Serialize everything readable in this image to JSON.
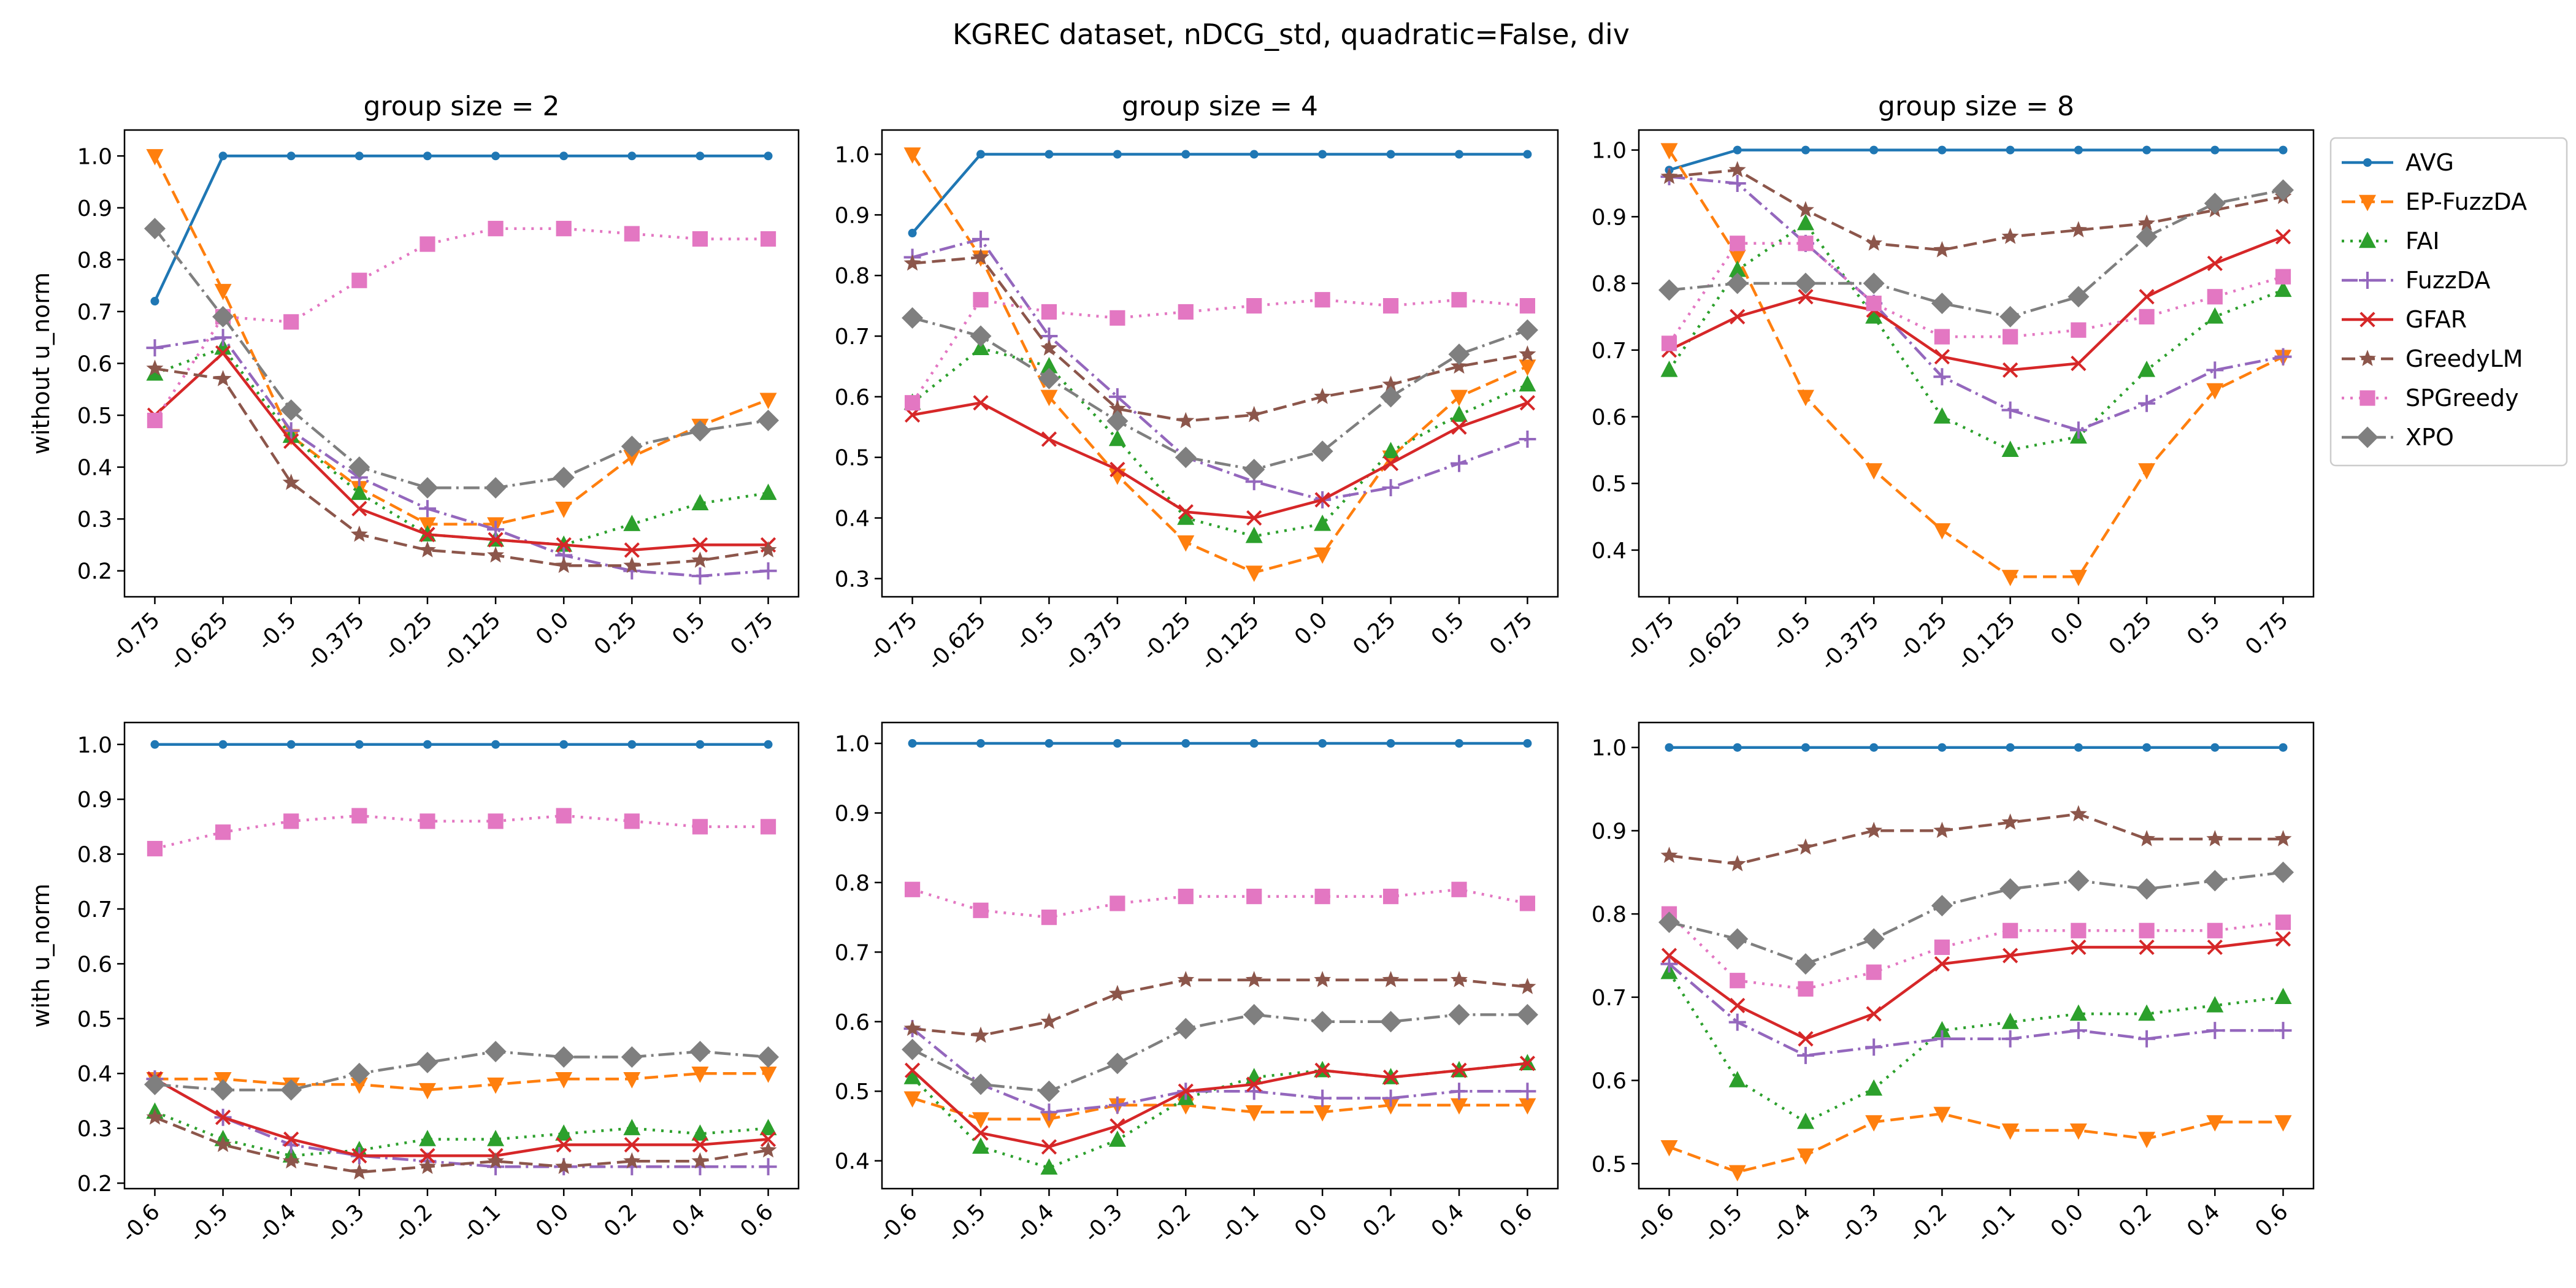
{
  "figure": {
    "suptitle": "KGREC dataset, nDCG_std, quadratic=False, div"
  },
  "series_styles": [
    {
      "name": "AVG",
      "color": "#1f77b4",
      "dash": "",
      "marker": "point"
    },
    {
      "name": "EP-FuzzDA",
      "color": "#ff7f0e",
      "dash": "22,10",
      "marker": "triangle-down"
    },
    {
      "name": "FAI",
      "color": "#2ca02c",
      "dash": "4,10",
      "marker": "triangle-up"
    },
    {
      "name": "FuzzDA",
      "color": "#9467bd",
      "dash": "26,8,4,8",
      "marker": "plus"
    },
    {
      "name": "GFAR",
      "color": "#d62728",
      "dash": "",
      "marker": "x"
    },
    {
      "name": "GreedyLM",
      "color": "#8c564b",
      "dash": "22,10",
      "marker": "star"
    },
    {
      "name": "SPGreedy",
      "color": "#e377c2",
      "dash": "4,10",
      "marker": "square"
    },
    {
      "name": "XPO",
      "color": "#7f7f7f",
      "dash": "26,8,4,8",
      "marker": "diamond"
    }
  ],
  "chart_data": [
    {
      "type": "line",
      "title": "group size = 2",
      "ylabel": "without u_norm",
      "xlabel": "",
      "categories": [
        "-0.75",
        "-0.625",
        "-0.5",
        "-0.375",
        "-0.25",
        "-0.125",
        "0.0",
        "0.25",
        "0.5",
        "0.75"
      ],
      "ylim": [
        0.15,
        1.05
      ],
      "yticks": [
        0.2,
        0.3,
        0.4,
        0.5,
        0.6,
        0.7,
        0.8,
        0.9,
        1.0
      ],
      "grid": false,
      "series": [
        {
          "name": "AVG",
          "values": [
            0.72,
            1.0,
            1.0,
            1.0,
            1.0,
            1.0,
            1.0,
            1.0,
            1.0,
            1.0
          ]
        },
        {
          "name": "EP-FuzzDA",
          "values": [
            1.0,
            0.74,
            0.46,
            0.36,
            0.29,
            0.29,
            0.32,
            0.42,
            0.48,
            0.53
          ]
        },
        {
          "name": "FAI",
          "values": [
            0.58,
            0.63,
            0.46,
            0.35,
            0.27,
            0.26,
            0.25,
            0.29,
            0.33,
            0.35
          ]
        },
        {
          "name": "FuzzDA",
          "values": [
            0.63,
            0.65,
            0.47,
            0.38,
            0.32,
            0.28,
            0.23,
            0.2,
            0.19,
            0.2
          ]
        },
        {
          "name": "GFAR",
          "values": [
            0.5,
            0.62,
            0.45,
            0.32,
            0.27,
            0.26,
            0.25,
            0.24,
            0.25,
            0.25
          ]
        },
        {
          "name": "GreedyLM",
          "values": [
            0.59,
            0.57,
            0.37,
            0.27,
            0.24,
            0.23,
            0.21,
            0.21,
            0.22,
            0.24
          ]
        },
        {
          "name": "SPGreedy",
          "values": [
            0.49,
            0.69,
            0.68,
            0.76,
            0.83,
            0.86,
            0.86,
            0.85,
            0.84,
            0.84
          ]
        },
        {
          "name": "XPO",
          "values": [
            0.86,
            0.69,
            0.51,
            0.4,
            0.36,
            0.36,
            0.38,
            0.44,
            0.47,
            0.49
          ]
        }
      ]
    },
    {
      "type": "line",
      "title": "group size = 4",
      "ylabel": "",
      "xlabel": "",
      "categories": [
        "-0.75",
        "-0.625",
        "-0.5",
        "-0.375",
        "-0.25",
        "-0.125",
        "0.0",
        "0.25",
        "0.5",
        "0.75"
      ],
      "ylim": [
        0.27,
        1.04
      ],
      "yticks": [
        0.3,
        0.4,
        0.5,
        0.6,
        0.7,
        0.8,
        0.9,
        1.0
      ],
      "grid": false,
      "series": [
        {
          "name": "AVG",
          "values": [
            0.87,
            1.0,
            1.0,
            1.0,
            1.0,
            1.0,
            1.0,
            1.0,
            1.0,
            1.0
          ]
        },
        {
          "name": "EP-FuzzDA",
          "values": [
            1.0,
            0.83,
            0.6,
            0.47,
            0.36,
            0.31,
            0.34,
            0.5,
            0.6,
            0.65
          ]
        },
        {
          "name": "FAI",
          "values": [
            0.59,
            0.68,
            0.65,
            0.53,
            0.4,
            0.37,
            0.39,
            0.51,
            0.57,
            0.62
          ]
        },
        {
          "name": "FuzzDA",
          "values": [
            0.83,
            0.86,
            0.7,
            0.6,
            0.5,
            0.46,
            0.43,
            0.45,
            0.49,
            0.53
          ]
        },
        {
          "name": "GFAR",
          "values": [
            0.57,
            0.59,
            0.53,
            0.48,
            0.41,
            0.4,
            0.43,
            0.49,
            0.55,
            0.59
          ]
        },
        {
          "name": "GreedyLM",
          "values": [
            0.82,
            0.83,
            0.68,
            0.58,
            0.56,
            0.57,
            0.6,
            0.62,
            0.65,
            0.67
          ]
        },
        {
          "name": "SPGreedy",
          "values": [
            0.59,
            0.76,
            0.74,
            0.73,
            0.74,
            0.75,
            0.76,
            0.75,
            0.76,
            0.75
          ]
        },
        {
          "name": "XPO",
          "values": [
            0.73,
            0.7,
            0.63,
            0.56,
            0.5,
            0.48,
            0.51,
            0.6,
            0.67,
            0.71
          ]
        }
      ]
    },
    {
      "type": "line",
      "title": "group size = 8",
      "ylabel": "",
      "xlabel": "",
      "categories": [
        "-0.75",
        "-0.625",
        "-0.5",
        "-0.375",
        "-0.25",
        "-0.125",
        "0.0",
        "0.25",
        "0.5",
        "0.75"
      ],
      "ylim": [
        0.33,
        1.03
      ],
      "yticks": [
        0.4,
        0.5,
        0.6,
        0.7,
        0.8,
        0.9,
        1.0
      ],
      "grid": false,
      "series": [
        {
          "name": "AVG",
          "values": [
            0.97,
            1.0,
            1.0,
            1.0,
            1.0,
            1.0,
            1.0,
            1.0,
            1.0,
            1.0
          ]
        },
        {
          "name": "EP-FuzzDA",
          "values": [
            1.0,
            0.84,
            0.63,
            0.52,
            0.43,
            0.36,
            0.36,
            0.52,
            0.64,
            0.69
          ]
        },
        {
          "name": "FAI",
          "values": [
            0.67,
            0.82,
            0.89,
            0.75,
            0.6,
            0.55,
            0.57,
            0.67,
            0.75,
            0.79
          ]
        },
        {
          "name": "FuzzDA",
          "values": [
            0.96,
            0.95,
            0.86,
            0.77,
            0.66,
            0.61,
            0.58,
            0.62,
            0.67,
            0.69
          ]
        },
        {
          "name": "GFAR",
          "values": [
            0.7,
            0.75,
            0.78,
            0.76,
            0.69,
            0.67,
            0.68,
            0.78,
            0.83,
            0.87
          ]
        },
        {
          "name": "GreedyLM",
          "values": [
            0.96,
            0.97,
            0.91,
            0.86,
            0.85,
            0.87,
            0.88,
            0.89,
            0.91,
            0.93
          ]
        },
        {
          "name": "SPGreedy",
          "values": [
            0.71,
            0.86,
            0.86,
            0.77,
            0.72,
            0.72,
            0.73,
            0.75,
            0.78,
            0.81
          ]
        },
        {
          "name": "XPO",
          "values": [
            0.79,
            0.8,
            0.8,
            0.8,
            0.77,
            0.75,
            0.78,
            0.87,
            0.92,
            0.94
          ]
        }
      ]
    },
    {
      "type": "line",
      "title": "",
      "ylabel": "with u_norm",
      "xlabel": "",
      "categories": [
        "-0.6",
        "-0.5",
        "-0.4",
        "-0.3",
        "-0.2",
        "-0.1",
        "0.0",
        "0.2",
        "0.4",
        "0.6"
      ],
      "ylim": [
        0.19,
        1.04
      ],
      "yticks": [
        0.2,
        0.3,
        0.4,
        0.5,
        0.6,
        0.7,
        0.8,
        0.9,
        1.0
      ],
      "grid": false,
      "series": [
        {
          "name": "AVG",
          "values": [
            1.0,
            1.0,
            1.0,
            1.0,
            1.0,
            1.0,
            1.0,
            1.0,
            1.0,
            1.0
          ]
        },
        {
          "name": "EP-FuzzDA",
          "values": [
            0.39,
            0.39,
            0.38,
            0.38,
            0.37,
            0.38,
            0.39,
            0.39,
            0.4,
            0.4
          ]
        },
        {
          "name": "FAI",
          "values": [
            0.33,
            0.28,
            0.25,
            0.26,
            0.28,
            0.28,
            0.29,
            0.3,
            0.29,
            0.3
          ]
        },
        {
          "name": "FuzzDA",
          "values": [
            0.39,
            0.32,
            0.27,
            0.25,
            0.24,
            0.23,
            0.23,
            0.23,
            0.23,
            0.23
          ]
        },
        {
          "name": "GFAR",
          "values": [
            0.39,
            0.32,
            0.28,
            0.25,
            0.25,
            0.25,
            0.27,
            0.27,
            0.27,
            0.28
          ]
        },
        {
          "name": "GreedyLM",
          "values": [
            0.32,
            0.27,
            0.24,
            0.22,
            0.23,
            0.24,
            0.23,
            0.24,
            0.24,
            0.26
          ]
        },
        {
          "name": "SPGreedy",
          "values": [
            0.81,
            0.84,
            0.86,
            0.87,
            0.86,
            0.86,
            0.87,
            0.86,
            0.85,
            0.85
          ]
        },
        {
          "name": "XPO",
          "values": [
            0.38,
            0.37,
            0.37,
            0.4,
            0.42,
            0.44,
            0.43,
            0.43,
            0.44,
            0.43
          ]
        }
      ]
    },
    {
      "type": "line",
      "title": "",
      "ylabel": "",
      "xlabel": "",
      "categories": [
        "-0.6",
        "-0.5",
        "-0.4",
        "-0.3",
        "-0.2",
        "-0.1",
        "0.0",
        "0.2",
        "0.4",
        "0.6"
      ],
      "ylim": [
        0.36,
        1.03
      ],
      "yticks": [
        0.4,
        0.5,
        0.6,
        0.7,
        0.8,
        0.9,
        1.0
      ],
      "grid": false,
      "series": [
        {
          "name": "AVG",
          "values": [
            1.0,
            1.0,
            1.0,
            1.0,
            1.0,
            1.0,
            1.0,
            1.0,
            1.0,
            1.0
          ]
        },
        {
          "name": "EP-FuzzDA",
          "values": [
            0.49,
            0.46,
            0.46,
            0.48,
            0.48,
            0.47,
            0.47,
            0.48,
            0.48,
            0.48
          ]
        },
        {
          "name": "FAI",
          "values": [
            0.52,
            0.42,
            0.39,
            0.43,
            0.49,
            0.52,
            0.53,
            0.52,
            0.53,
            0.54
          ]
        },
        {
          "name": "FuzzDA",
          "values": [
            0.59,
            0.51,
            0.47,
            0.48,
            0.5,
            0.5,
            0.49,
            0.49,
            0.5,
            0.5
          ]
        },
        {
          "name": "GFAR",
          "values": [
            0.53,
            0.44,
            0.42,
            0.45,
            0.5,
            0.51,
            0.53,
            0.52,
            0.53,
            0.54
          ]
        },
        {
          "name": "GreedyLM",
          "values": [
            0.59,
            0.58,
            0.6,
            0.64,
            0.66,
            0.66,
            0.66,
            0.66,
            0.66,
            0.65
          ]
        },
        {
          "name": "SPGreedy",
          "values": [
            0.79,
            0.76,
            0.75,
            0.77,
            0.78,
            0.78,
            0.78,
            0.78,
            0.79,
            0.77
          ]
        },
        {
          "name": "XPO",
          "values": [
            0.56,
            0.51,
            0.5,
            0.54,
            0.59,
            0.61,
            0.6,
            0.6,
            0.61,
            0.61
          ]
        }
      ]
    },
    {
      "type": "line",
      "title": "",
      "ylabel": "",
      "xlabel": "",
      "categories": [
        "-0.6",
        "-0.5",
        "-0.4",
        "-0.3",
        "-0.2",
        "-0.1",
        "0.0",
        "0.2",
        "0.4",
        "0.6"
      ],
      "ylim": [
        0.47,
        1.03
      ],
      "yticks": [
        0.5,
        0.6,
        0.7,
        0.8,
        0.9,
        1.0
      ],
      "grid": false,
      "series": [
        {
          "name": "AVG",
          "values": [
            1.0,
            1.0,
            1.0,
            1.0,
            1.0,
            1.0,
            1.0,
            1.0,
            1.0,
            1.0
          ]
        },
        {
          "name": "EP-FuzzDA",
          "values": [
            0.52,
            0.49,
            0.51,
            0.55,
            0.56,
            0.54,
            0.54,
            0.53,
            0.55,
            0.55
          ]
        },
        {
          "name": "FAI",
          "values": [
            0.73,
            0.6,
            0.55,
            0.59,
            0.66,
            0.67,
            0.68,
            0.68,
            0.69,
            0.7
          ]
        },
        {
          "name": "FuzzDA",
          "values": [
            0.74,
            0.67,
            0.63,
            0.64,
            0.65,
            0.65,
            0.66,
            0.65,
            0.66,
            0.66
          ]
        },
        {
          "name": "GFAR",
          "values": [
            0.75,
            0.69,
            0.65,
            0.68,
            0.74,
            0.75,
            0.76,
            0.76,
            0.76,
            0.77
          ]
        },
        {
          "name": "GreedyLM",
          "values": [
            0.87,
            0.86,
            0.88,
            0.9,
            0.9,
            0.91,
            0.92,
            0.89,
            0.89,
            0.89
          ]
        },
        {
          "name": "SPGreedy",
          "values": [
            0.8,
            0.72,
            0.71,
            0.73,
            0.76,
            0.78,
            0.78,
            0.78,
            0.78,
            0.79
          ]
        },
        {
          "name": "XPO",
          "values": [
            0.79,
            0.77,
            0.74,
            0.77,
            0.81,
            0.83,
            0.84,
            0.83,
            0.84,
            0.85
          ]
        }
      ]
    }
  ]
}
